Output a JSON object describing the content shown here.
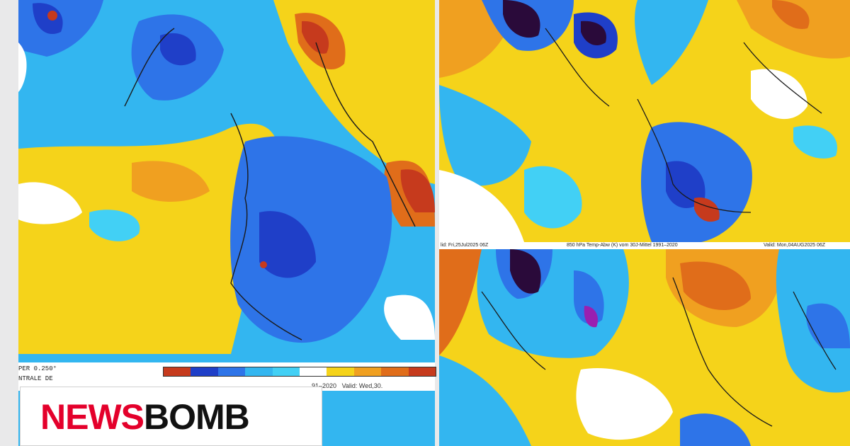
{
  "left_map": {
    "legend_top": "PER  0.250°",
    "legend_bottom": "NTRALE DE",
    "period_fragment": "91–2020",
    "valid_fragment": "Valid: Wed,30."
  },
  "right_strip": {
    "left_text": "lid: Fri,25Jul2025 06Z",
    "middle_text": "850 hPa Temp-Abw (K) vom 30J-Mittel 1991–2020",
    "right_text": "Valid: Mon,04AUG2025 06Z"
  },
  "logo": {
    "part1": "NEWS",
    "part2": "BOMB"
  },
  "palette": {
    "deep_purple": "#2a0a3a",
    "dark_blue": "#1f3fc8",
    "blue": "#2e74e8",
    "light_blue": "#33b6f0",
    "cyan": "#42d0f5",
    "white": "#ffffff",
    "yellow": "#f5d31a",
    "orange": "#f0a020",
    "dark_orange": "#e06d1a",
    "red": "#c63a1d",
    "logo_red": "#e4002b"
  }
}
